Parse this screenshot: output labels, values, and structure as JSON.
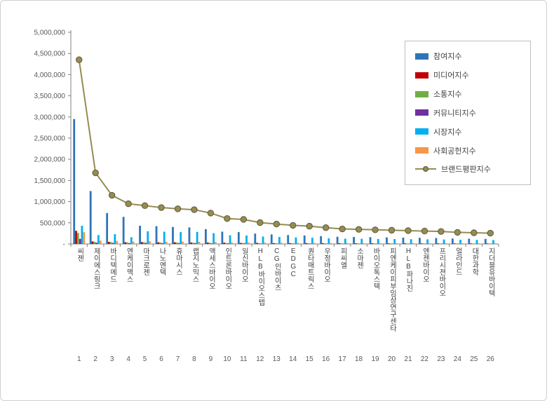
{
  "chart_data": {
    "type": "bar",
    "title": "",
    "xlabel": "",
    "ylabel": "",
    "ylim": [
      0,
      5000000
    ],
    "y_tick_step": 500000,
    "y_tick_labels": [
      "-",
      "500,000",
      "1,000,000",
      "1,500,000",
      "2,000,000",
      "2,500,000",
      "3,000,000",
      "3,500,000",
      "4,000,000",
      "4,500,000",
      "5,000,000"
    ],
    "grid": false,
    "legend_position": "right-top",
    "categories": [
      "씨젠",
      "제이에스링크",
      "바디텍메드",
      "엔케이맥스",
      "마크로젠",
      "나노엔텍",
      "휴마시스",
      "랩지노믹스",
      "액세스바이오",
      "인트론바이오",
      "일신바이오",
      "HLB바이오스텝",
      "CG인바이츠",
      "EDGC",
      "퀀타매트릭스",
      "우정바이오",
      "피씨엘",
      "소마젠",
      "바이오톡스텍",
      "피엔케이피부임상연구센타",
      "HLB파나진",
      "엔젠바이오",
      "프리시젼바이오",
      "얼라인드",
      "대한과학",
      "지더블유바이텍"
    ],
    "ranks": [
      "1",
      "2",
      "3",
      "4",
      "5",
      "6",
      "7",
      "8",
      "9",
      "10",
      "11",
      "12",
      "13",
      "14",
      "15",
      "16",
      "17",
      "18",
      "19",
      "20",
      "21",
      "22",
      "23",
      "24",
      "25",
      "26"
    ],
    "series": [
      {
        "name": "참여지수",
        "type": "bar",
        "color": "#2E75B6",
        "values": [
          2950000,
          1250000,
          730000,
          640000,
          430000,
          420000,
          400000,
          390000,
          350000,
          290000,
          280000,
          245000,
          225000,
          210000,
          200000,
          185000,
          170000,
          165000,
          160000,
          155000,
          150000,
          145000,
          140000,
          130000,
          125000,
          120000
        ]
      },
      {
        "name": "미디어지수",
        "type": "bar",
        "color": "#C00000",
        "values": [
          310000,
          60000,
          50000,
          40000,
          45000,
          40000,
          40000,
          35000,
          35000,
          30000,
          25000,
          25000,
          20000,
          20000,
          20000,
          18000,
          17000,
          16000,
          16000,
          15000,
          15000,
          14000,
          14000,
          13000,
          13000,
          12000
        ]
      },
      {
        "name": "소통지수",
        "type": "bar",
        "color": "#70AD47",
        "values": [
          260000,
          50000,
          45000,
          35000,
          40000,
          35000,
          35000,
          30000,
          30000,
          25000,
          25000,
          20000,
          20000,
          18000,
          17000,
          15000,
          14000,
          14000,
          13000,
          13000,
          12000,
          12000,
          12000,
          11000,
          11000,
          10000
        ]
      },
      {
        "name": "커뮤니티지수",
        "type": "bar",
        "color": "#7030A0",
        "values": [
          120000,
          30000,
          25000,
          20000,
          25000,
          20000,
          20000,
          20000,
          15000,
          15000,
          15000,
          10000,
          10000,
          10000,
          10000,
          9000,
          8000,
          8000,
          8000,
          8000,
          7000,
          7000,
          7000,
          6000,
          6000,
          6000
        ]
      },
      {
        "name": "시장지수",
        "type": "bar",
        "color": "#00B0F0",
        "values": [
          430000,
          210000,
          230000,
          160000,
          300000,
          290000,
          280000,
          285000,
          255000,
          205000,
          200000,
          175000,
          165000,
          155000,
          148000,
          135000,
          125000,
          122000,
          118000,
          115000,
          112000,
          109000,
          105000,
          99000,
          95000,
          92000
        ]
      },
      {
        "name": "사회공헌지수",
        "type": "bar",
        "color": "#F79646",
        "values": [
          280000,
          80000,
          70000,
          55000,
          65000,
          55000,
          55000,
          50000,
          45000,
          35000,
          35000,
          30000,
          30000,
          27000,
          25000,
          23000,
          21000,
          20000,
          20000,
          19000,
          19000,
          18000,
          17000,
          16000,
          15000,
          15000
        ]
      },
      {
        "name": "브랜드평판지수",
        "type": "line",
        "color": "#958C54",
        "marker_stroke": "#5F5936",
        "values": [
          4350000,
          1680000,
          1150000,
          950000,
          905000,
          860000,
          830000,
          810000,
          730000,
          600000,
          580000,
          505000,
          470000,
          440000,
          420000,
          385000,
          355000,
          345000,
          335000,
          325000,
          315000,
          305000,
          295000,
          275000,
          265000,
          255000
        ]
      }
    ],
    "axis_color": "#808080",
    "tick_label_color": "#595959",
    "category_label_color": "#404040"
  }
}
